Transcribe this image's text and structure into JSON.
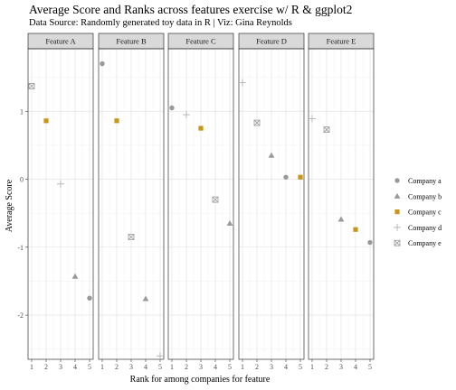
{
  "title": "Average Score and Ranks across features exercise w/ R & ggplot2",
  "subtitle": "Data Source: Randomly generated toy data in R | Viz: Gina Reynolds",
  "chart_data": {
    "type": "scatter",
    "xlabel": "Rank for among companies for feature",
    "ylabel": "Average Score",
    "ylim": [
      -2.65,
      1.92
    ],
    "yticks": [
      -2,
      -1,
      0,
      1
    ],
    "xlim": [
      0.75,
      5.25
    ],
    "xticks": [
      1,
      2,
      3,
      4,
      5
    ],
    "grid": true,
    "legend_position": "right",
    "panels": [
      "Feature A",
      "Feature B",
      "Feature C",
      "Feature D",
      "Feature E"
    ],
    "series": [
      {
        "name": "Company a",
        "shape": "circle",
        "color": "#999999",
        "points": [
          {
            "panel": "Feature A",
            "x": 5,
            "y": -1.75
          },
          {
            "panel": "Feature B",
            "x": 1,
            "y": 1.7
          },
          {
            "panel": "Feature C",
            "x": 1,
            "y": 1.05
          },
          {
            "panel": "Feature D",
            "x": 4,
            "y": 0.03
          },
          {
            "panel": "Feature E",
            "x": 5,
            "y": -0.93
          }
        ]
      },
      {
        "name": "Company b",
        "shape": "triangle",
        "color": "#999999",
        "points": [
          {
            "panel": "Feature A",
            "x": 4,
            "y": -1.43
          },
          {
            "panel": "Feature B",
            "x": 4,
            "y": -1.76
          },
          {
            "panel": "Feature C",
            "x": 5,
            "y": -0.65
          },
          {
            "panel": "Feature D",
            "x": 3,
            "y": 0.35
          },
          {
            "panel": "Feature E",
            "x": 3,
            "y": -0.59
          }
        ]
      },
      {
        "name": "Company c",
        "shape": "square",
        "color": "#C9951A",
        "points": [
          {
            "panel": "Feature A",
            "x": 2,
            "y": 0.86
          },
          {
            "panel": "Feature B",
            "x": 2,
            "y": 0.86
          },
          {
            "panel": "Feature C",
            "x": 3,
            "y": 0.75
          },
          {
            "panel": "Feature D",
            "x": 5,
            "y": 0.03
          },
          {
            "panel": "Feature E",
            "x": 4,
            "y": -0.74
          }
        ]
      },
      {
        "name": "Company d",
        "shape": "plus",
        "color": "#aaaaaa",
        "points": [
          {
            "panel": "Feature A",
            "x": 3,
            "y": -0.07
          },
          {
            "panel": "Feature B",
            "x": 5,
            "y": -2.6
          },
          {
            "panel": "Feature C",
            "x": 2,
            "y": 0.95
          },
          {
            "panel": "Feature D",
            "x": 1,
            "y": 1.42
          },
          {
            "panel": "Feature E",
            "x": 1,
            "y": 0.89
          }
        ]
      },
      {
        "name": "Company e",
        "shape": "boxx",
        "color": "#999999",
        "points": [
          {
            "panel": "Feature A",
            "x": 1,
            "y": 1.37
          },
          {
            "panel": "Feature B",
            "x": 3,
            "y": -0.85
          },
          {
            "panel": "Feature C",
            "x": 4,
            "y": -0.3
          },
          {
            "panel": "Feature D",
            "x": 2,
            "y": 0.83
          },
          {
            "panel": "Feature E",
            "x": 2,
            "y": 0.73
          }
        ]
      }
    ]
  }
}
